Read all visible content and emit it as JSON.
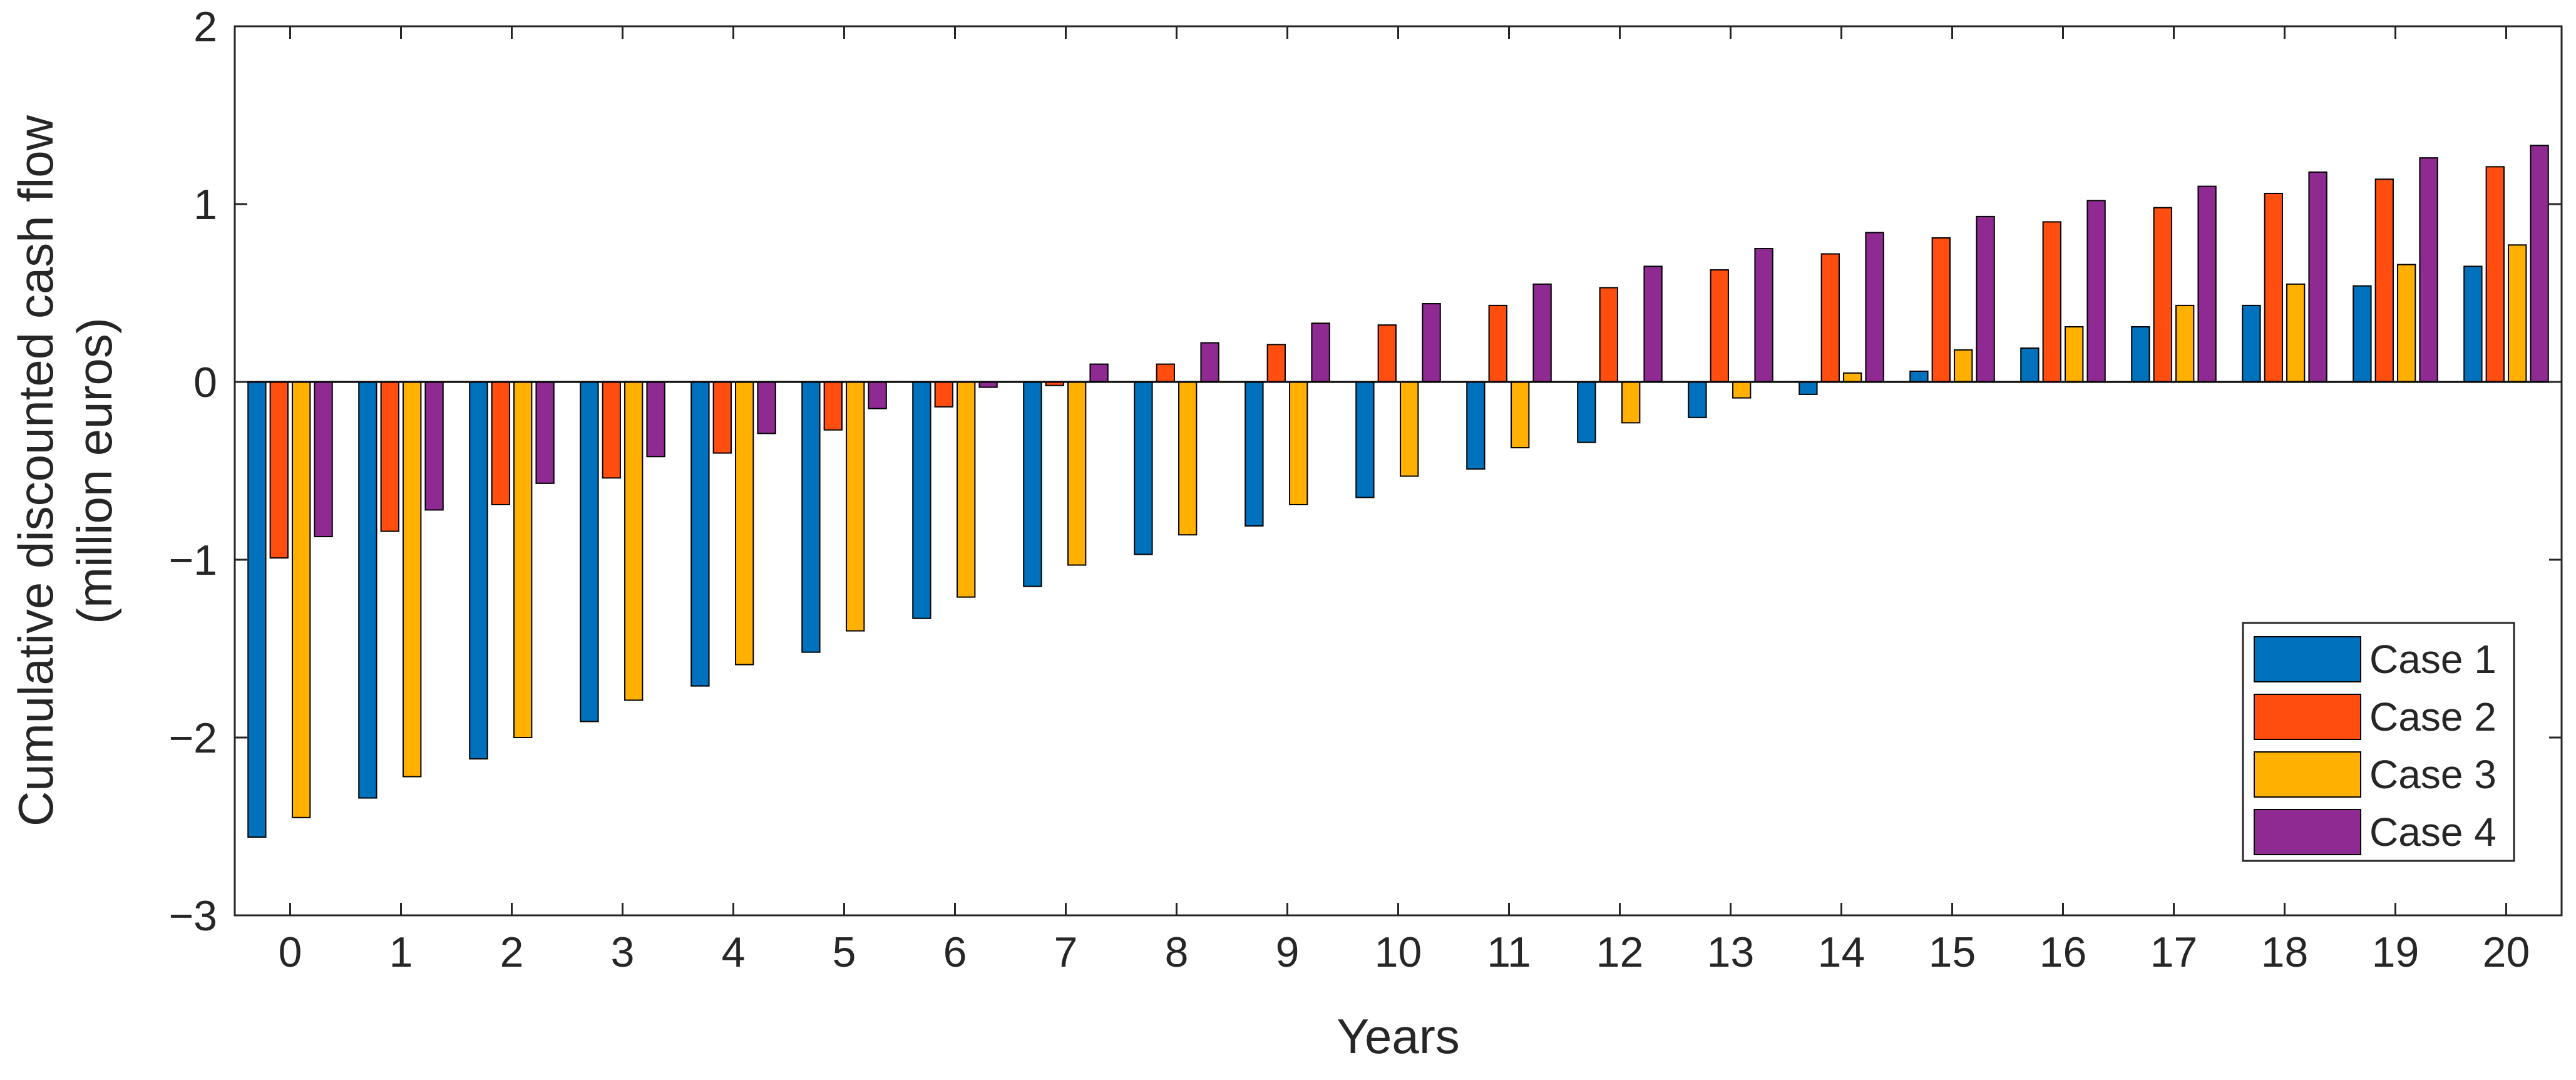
{
  "chart_data": {
    "type": "bar",
    "title": "",
    "xlabel": "Years",
    "ylabel": "Cumulative discounted cash flow",
    "ylabel_line2": "(million euros)",
    "categories": [
      "0",
      "1",
      "2",
      "3",
      "4",
      "5",
      "6",
      "7",
      "8",
      "9",
      "10",
      "11",
      "12",
      "13",
      "14",
      "15",
      "16",
      "17",
      "18",
      "19",
      "20"
    ],
    "ylim": [
      -3,
      2
    ],
    "yticks": [
      -3,
      -2,
      -1,
      0,
      1,
      2
    ],
    "ytick_labels": [
      "−3",
      "−2",
      "−1",
      "0",
      "1",
      "2"
    ],
    "grid": false,
    "legend_position": "bottom-right",
    "series": [
      {
        "name": "Case 1",
        "color": "#0072BD",
        "values": [
          -2.56,
          -2.34,
          -2.12,
          -1.91,
          -1.71,
          -1.52,
          -1.33,
          -1.15,
          -0.97,
          -0.81,
          -0.65,
          -0.49,
          -0.34,
          -0.2,
          -0.07,
          0.06,
          0.19,
          0.31,
          0.43,
          0.54,
          0.65
        ]
      },
      {
        "name": "Case 2",
        "color": "#FF4E0F",
        "values": [
          -0.99,
          -0.84,
          -0.69,
          -0.54,
          -0.4,
          -0.27,
          -0.14,
          -0.02,
          0.1,
          0.21,
          0.32,
          0.43,
          0.53,
          0.63,
          0.72,
          0.81,
          0.9,
          0.98,
          1.06,
          1.14,
          1.21
        ]
      },
      {
        "name": "Case 3",
        "color": "#FFB000",
        "values": [
          -2.45,
          -2.22,
          -2.0,
          -1.79,
          -1.59,
          -1.4,
          -1.21,
          -1.03,
          -0.86,
          -0.69,
          -0.53,
          -0.37,
          -0.23,
          -0.09,
          0.05,
          0.18,
          0.31,
          0.43,
          0.55,
          0.66,
          0.77
        ]
      },
      {
        "name": "Case 4",
        "color": "#8E2A91",
        "values": [
          -0.87,
          -0.72,
          -0.57,
          -0.42,
          -0.29,
          -0.15,
          -0.03,
          0.1,
          0.22,
          0.33,
          0.44,
          0.55,
          0.65,
          0.75,
          0.84,
          0.93,
          1.02,
          1.1,
          1.18,
          1.26,
          1.33
        ]
      }
    ]
  }
}
